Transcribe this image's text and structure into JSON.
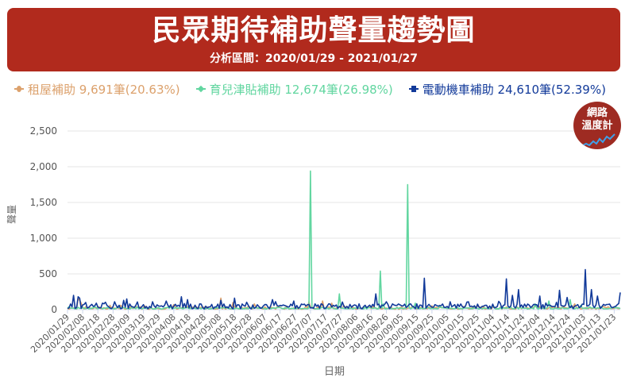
{
  "banner": {
    "title": "民眾期待補助聲量趨勢圖",
    "subtitle": "分析區間：2020/01/29 - 2021/01/27"
  },
  "badge": {
    "line1": "網路",
    "line2": "溫度計"
  },
  "legend": [
    {
      "label": "租屋補助 9,691筆(20.63%)",
      "color": "#dca16c",
      "marker": "circle"
    },
    {
      "label": "育兒津貼補助 12,674筆(26.98%)",
      "color": "#62d6a0",
      "marker": "diamond"
    },
    {
      "label": "電動機車補助 24,610筆(52.39%)",
      "color": "#123a9a",
      "marker": "square"
    }
  ],
  "chart_data": {
    "type": "line",
    "title": "民眾期待補助聲量趨勢圖",
    "subtitle": "分析區間：2020/01/29 - 2021/01/27",
    "xlabel": "日期",
    "ylabel": "聲量",
    "ylim": [
      0,
      2500
    ],
    "yticks": [
      0,
      500,
      1000,
      1500,
      2000,
      2500
    ],
    "ytick_labels": [
      "0",
      "500",
      "1,000",
      "1,500",
      "2,000",
      "2,500"
    ],
    "grid": true,
    "legend_position": "top",
    "x_start": "2020/01/29",
    "x_end": "2021/01/27",
    "num_days": 365,
    "xtick_labels": [
      "2020/01/29",
      "2020/02/08",
      "2020/02/18",
      "2020/02/28",
      "2020/03/09",
      "2020/03/19",
      "2020/03/29",
      "2020/04/08",
      "2020/04/18",
      "2020/04/28",
      "2020/05/08",
      "2020/05/18",
      "2020/05/28",
      "2020/06/07",
      "2020/06/17",
      "2020/06/27",
      "2020/07/07",
      "2020/07/17",
      "2020/07/27",
      "2020/08/06",
      "2020/08/16",
      "2020/08/26",
      "2020/09/05",
      "2020/09/15",
      "2020/09/25",
      "2020/10/05",
      "2020/10/15",
      "2020/10/25",
      "2020/11/04",
      "2020/11/14",
      "2020/11/24",
      "2020/12/04",
      "2020/12/14",
      "2020/12/24",
      "2021/01/03",
      "2021/01/13",
      "2021/01/23"
    ],
    "series": [
      {
        "name": "租屋補助",
        "total": 9691,
        "share": "20.63%",
        "color": "#dca16c",
        "baseline": 22,
        "noise": 18,
        "peaks": [
          [
            8,
            160
          ],
          [
            9,
            130
          ],
          [
            10,
            90
          ],
          [
            30,
            60
          ],
          [
            55,
            50
          ],
          [
            75,
            70
          ],
          [
            108,
            160
          ],
          [
            117,
            100
          ],
          [
            132,
            80
          ],
          [
            170,
            110
          ],
          [
            180,
            120
          ],
          [
            186,
            90
          ],
          [
            195,
            60
          ],
          [
            215,
            40
          ],
          [
            250,
            30
          ],
          [
            290,
            40
          ],
          [
            330,
            50
          ],
          [
            358,
            80
          ]
        ]
      },
      {
        "name": "育兒津貼補助",
        "total": 12674,
        "share": "26.98%",
        "color": "#62d6a0",
        "baseline": 18,
        "noise": 10,
        "peaks": [
          [
            1,
            40
          ],
          [
            171,
            1940
          ],
          [
            192,
            220
          ],
          [
            221,
            540
          ],
          [
            223,
            80
          ],
          [
            240,
            1750
          ],
          [
            245,
            90
          ],
          [
            262,
            60
          ],
          [
            300,
            60
          ],
          [
            330,
            80
          ],
          [
            340,
            120
          ],
          [
            355,
            140
          ],
          [
            362,
            60
          ]
        ]
      },
      {
        "name": "電動機車補助",
        "total": 24610,
        "share": "52.39%",
        "color": "#123a9a",
        "baseline": 45,
        "noise": 35,
        "peaks": [
          [
            4,
            200
          ],
          [
            7,
            180
          ],
          [
            9,
            160
          ],
          [
            13,
            100
          ],
          [
            20,
            90
          ],
          [
            33,
            110
          ],
          [
            40,
            130
          ],
          [
            42,
            150
          ],
          [
            60,
            110
          ],
          [
            70,
            120
          ],
          [
            80,
            180
          ],
          [
            85,
            140
          ],
          [
            108,
            130
          ],
          [
            118,
            160
          ],
          [
            145,
            140
          ],
          [
            160,
            120
          ],
          [
            175,
            80
          ],
          [
            218,
            220
          ],
          [
            225,
            110
          ],
          [
            246,
            80
          ],
          [
            252,
            440
          ],
          [
            270,
            110
          ],
          [
            283,
            110
          ],
          [
            310,
            430
          ],
          [
            314,
            200
          ],
          [
            318,
            280
          ],
          [
            333,
            190
          ],
          [
            347,
            270
          ],
          [
            353,
            170
          ],
          [
            365,
            560
          ],
          [
            370,
            280
          ],
          [
            374,
            190
          ],
          [
            390,
            240
          ]
        ]
      }
    ]
  }
}
